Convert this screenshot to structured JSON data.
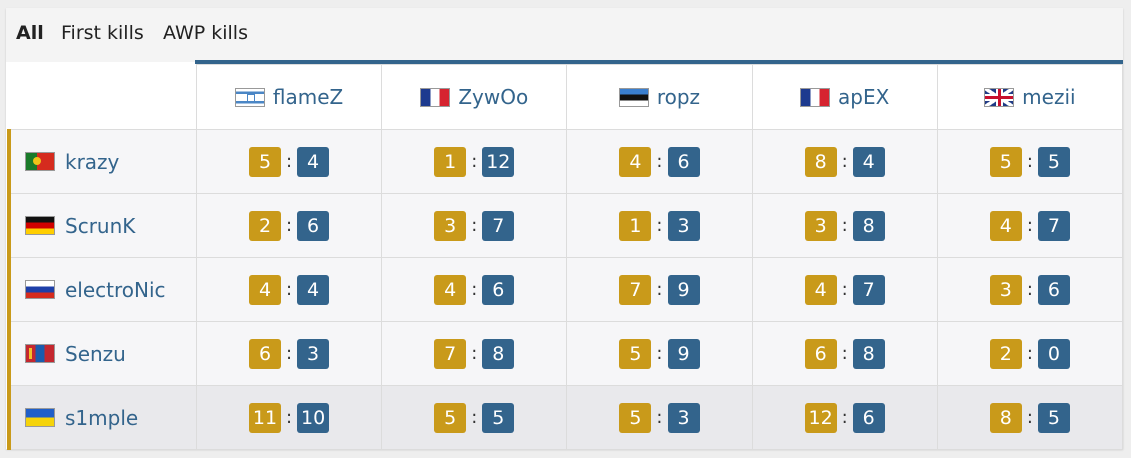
{
  "tabs": [
    {
      "label": "All",
      "active": true
    },
    {
      "label": "First kills",
      "active": false
    },
    {
      "label": "AWP kills",
      "active": false
    }
  ],
  "colors": {
    "accent_blue": "#33648c",
    "accent_gold": "#c99a1a"
  },
  "columns": [
    {
      "name": "flameZ",
      "flag": "israel-flag-icon"
    },
    {
      "name": "ZywOo",
      "flag": "france-flag-icon"
    },
    {
      "name": "ropz",
      "flag": "estonia-flag-icon"
    },
    {
      "name": "apEX",
      "flag": "france-flag-icon"
    },
    {
      "name": "mezii",
      "flag": "uk-flag-icon"
    }
  ],
  "rows": [
    {
      "name": "krazy",
      "flag": "portugal-flag-icon",
      "scores": [
        [
          "5",
          "4"
        ],
        [
          "1",
          "12"
        ],
        [
          "4",
          "6"
        ],
        [
          "8",
          "4"
        ],
        [
          "5",
          "5"
        ]
      ]
    },
    {
      "name": "ScrunK",
      "flag": "germany-flag-icon",
      "scores": [
        [
          "2",
          "6"
        ],
        [
          "3",
          "7"
        ],
        [
          "1",
          "3"
        ],
        [
          "3",
          "8"
        ],
        [
          "4",
          "7"
        ]
      ]
    },
    {
      "name": "electroNic",
      "flag": "russia-flag-icon",
      "scores": [
        [
          "4",
          "4"
        ],
        [
          "4",
          "6"
        ],
        [
          "7",
          "9"
        ],
        [
          "4",
          "7"
        ],
        [
          "3",
          "6"
        ]
      ]
    },
    {
      "name": "Senzu",
      "flag": "mongolia-flag-icon",
      "scores": [
        [
          "6",
          "3"
        ],
        [
          "7",
          "8"
        ],
        [
          "5",
          "9"
        ],
        [
          "6",
          "8"
        ],
        [
          "2",
          "0"
        ]
      ]
    },
    {
      "name": "s1mple",
      "flag": "ukraine-flag-icon",
      "scores": [
        [
          "11",
          "10"
        ],
        [
          "5",
          "5"
        ],
        [
          "5",
          "3"
        ],
        [
          "12",
          "6"
        ],
        [
          "8",
          "5"
        ]
      ],
      "highlighted": true
    }
  ],
  "separator": ":"
}
